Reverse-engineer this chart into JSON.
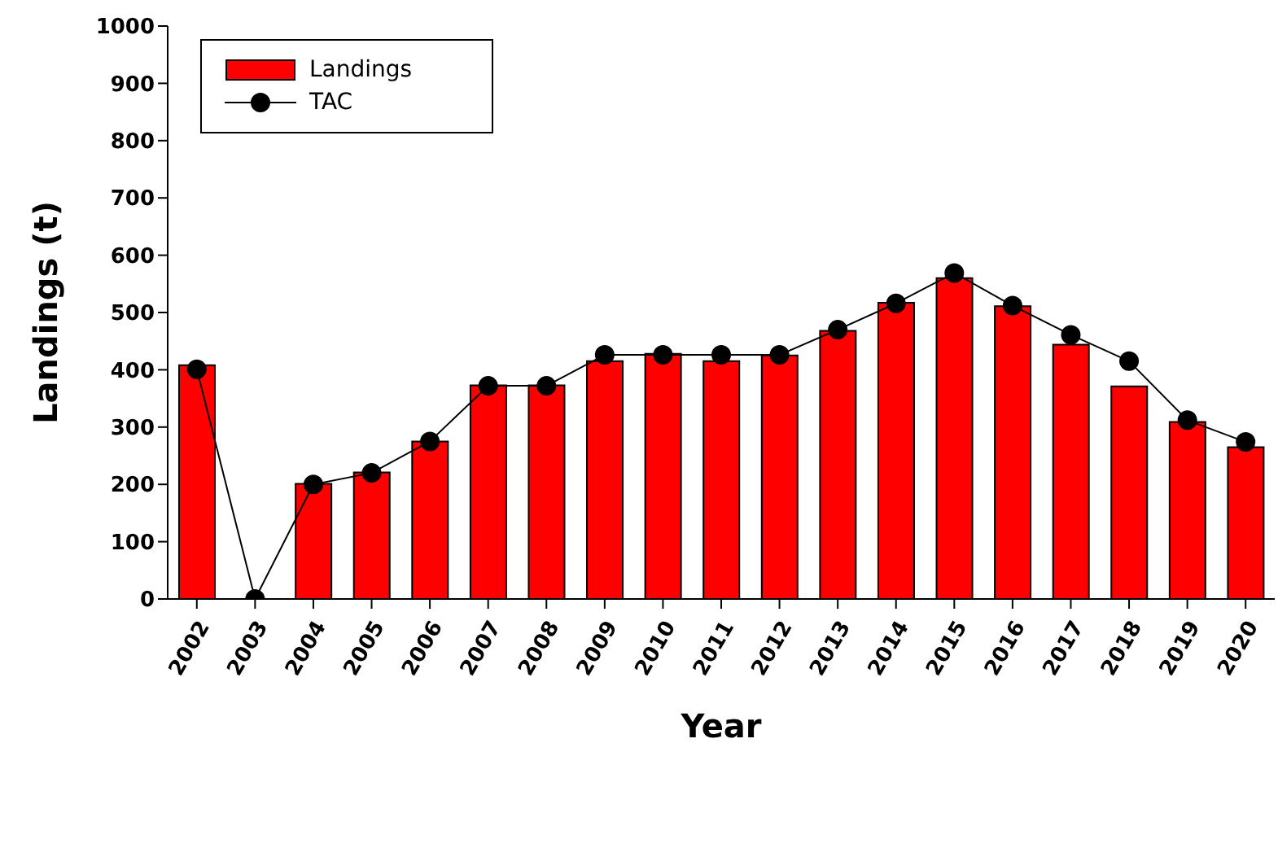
{
  "chart_data": {
    "type": "bar",
    "xlabel": "Year",
    "ylabel": "Landings (t)",
    "categories": [
      "2002",
      "2003",
      "2004",
      "2005",
      "2006",
      "2007",
      "2008",
      "2009",
      "2010",
      "2011",
      "2012",
      "2013",
      "2014",
      "2015",
      "2016",
      "2017",
      "2018",
      "2019",
      "2020"
    ],
    "series": [
      {
        "name": "Landings",
        "color": "#ff0000",
        "values": [
          408,
          0,
          201,
          221,
          275,
          373,
          373,
          415,
          428,
          415,
          425,
          468,
          517,
          560,
          511,
          444,
          371,
          309,
          265
        ]
      },
      {
        "name": "TAC",
        "type": "line",
        "color": "#000000",
        "marker": "circle",
        "values": [
          401,
          0,
          200,
          220,
          275,
          372,
          372,
          426,
          426,
          426,
          426,
          470,
          516,
          569,
          512,
          461,
          415,
          312,
          274
        ]
      }
    ],
    "ylim": [
      0,
      1000
    ],
    "yticks": [
      0,
      100,
      200,
      300,
      400,
      500,
      600,
      700,
      800,
      900,
      1000
    ],
    "legend": "top left"
  }
}
